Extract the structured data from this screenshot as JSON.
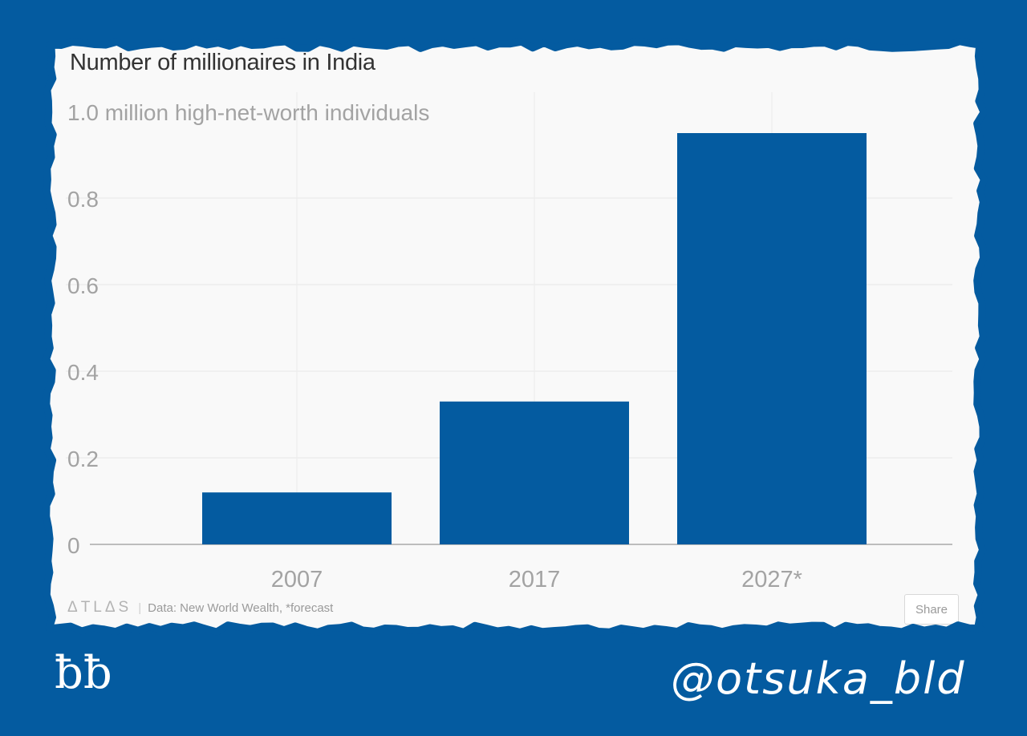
{
  "chart_data": {
    "type": "bar",
    "title": "Number of millionaires in India",
    "subtitle_label": "1.0 million high-net-worth individuals",
    "categories": [
      "2007",
      "2017",
      "2027*"
    ],
    "values": [
      0.12,
      0.33,
      0.95
    ],
    "ylim": [
      0,
      1.0
    ],
    "yticks": [
      "0",
      "0.2",
      "0.4",
      "0.6",
      "0.8"
    ],
    "ytick_values": [
      0,
      0.2,
      0.4,
      0.6,
      0.8
    ],
    "grid": true,
    "bar_color": "#045ba0"
  },
  "footer": {
    "logo": "ΔTLΔS",
    "separator": "|",
    "source": "Data:  New World Wealth, *forecast",
    "share_label": "Share"
  },
  "watermarks": {
    "left_mark": "ƀƀ",
    "right_handle": "@otsuka_bld"
  },
  "colors": {
    "background": "#045ba0",
    "card": "#f9f9f9"
  }
}
